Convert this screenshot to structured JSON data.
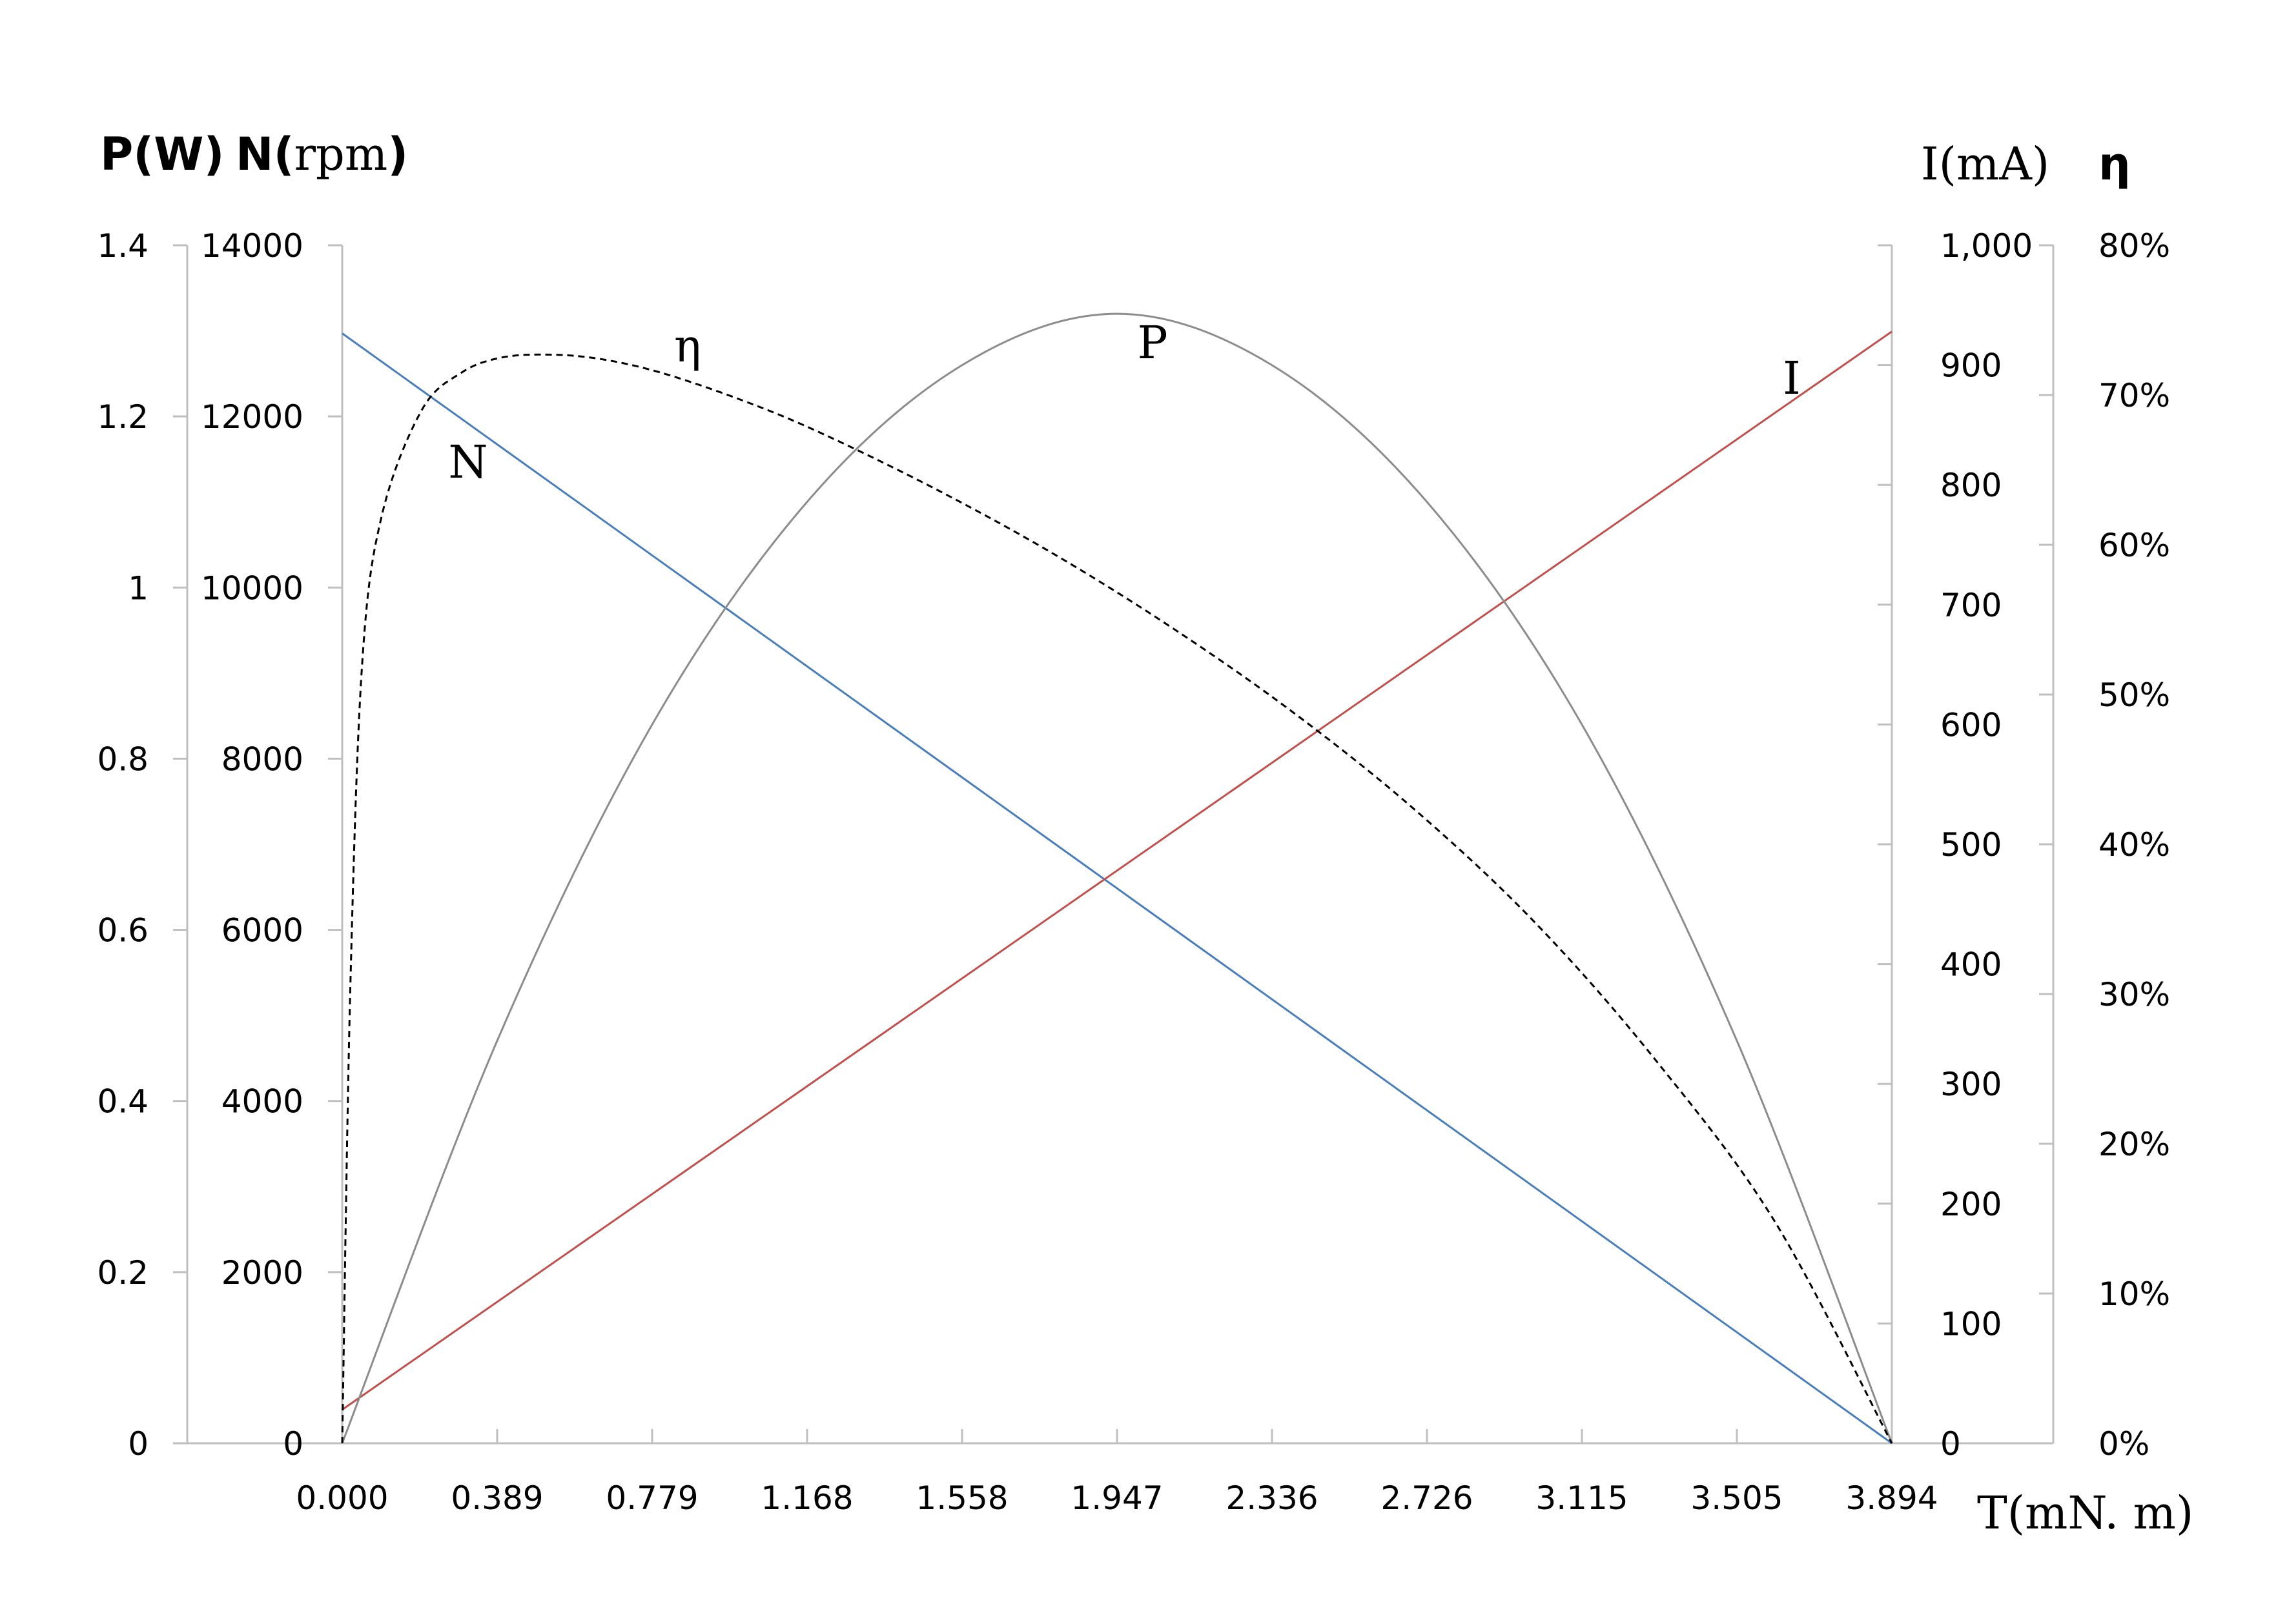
{
  "chart_data": {
    "type": "line",
    "title": "",
    "x_axis": {
      "label_main": "T",
      "label_unit": "(mN. m)",
      "min": 0,
      "max": 3.894,
      "ticks": [
        "0.000",
        "0.389",
        "0.779",
        "1.168",
        "1.558",
        "1.947",
        "2.336",
        "2.726",
        "3.115",
        "3.505",
        "3.894"
      ]
    },
    "y_axes": {
      "power": {
        "label": "P(W)",
        "min": 0,
        "max": 1.4,
        "ticks": [
          "0",
          "0.2",
          "0.4",
          "0.6",
          "0.8",
          "1",
          "1.2",
          "1.4"
        ]
      },
      "speed": {
        "label_bold": "N(",
        "label_unit": "rpm",
        "label_close": ")",
        "min": 0,
        "max": 14000,
        "ticks": [
          "0",
          "2000",
          "4000",
          "6000",
          "8000",
          "10000",
          "12000",
          "14000"
        ]
      },
      "current": {
        "label": "I(mA)",
        "min": 0,
        "max": 1000,
        "ticks": [
          "0",
          "100",
          "200",
          "300",
          "400",
          "500",
          "600",
          "700",
          "800",
          "900",
          "1,000"
        ]
      },
      "efficiency": {
        "label": "η",
        "min": 0,
        "max": 0.8,
        "ticks": [
          "0%",
          "10%",
          "20%",
          "30%",
          "40%",
          "50%",
          "60%",
          "70%",
          "80%"
        ]
      }
    },
    "series": [
      {
        "name": "N",
        "axis": "speed",
        "color": "#4a7ebb",
        "dash": "solid",
        "x": [
          0,
          3.894
        ],
        "y": [
          12970,
          0
        ]
      },
      {
        "name": "I",
        "axis": "current",
        "color": "#c0504d",
        "dash": "solid",
        "x": [
          0,
          3.894
        ],
        "y": [
          28,
          928
        ]
      },
      {
        "name": "P",
        "axis": "power",
        "color": "#8c8c8c",
        "dash": "solid",
        "x": [
          0,
          0.389,
          0.779,
          1.168,
          1.558,
          1.947,
          2.336,
          2.726,
          3.115,
          3.505,
          3.894
        ],
        "y": [
          0,
          0.47,
          0.84,
          1.1,
          1.26,
          1.32,
          1.26,
          1.1,
          0.84,
          0.47,
          0
        ]
      },
      {
        "name": "η",
        "axis": "efficiency",
        "color": "#000000",
        "dash": "dashed",
        "x": [
          0,
          0.02,
          0.05,
          0.1,
          0.2,
          0.3,
          0.4,
          0.52,
          0.65,
          0.8,
          1.0,
          1.2,
          1.5,
          1.8,
          2.1,
          2.4,
          2.7,
          3.0,
          3.3,
          3.6,
          3.894
        ],
        "y": [
          0,
          0.3,
          0.52,
          0.62,
          0.69,
          0.715,
          0.725,
          0.727,
          0.724,
          0.715,
          0.697,
          0.675,
          0.636,
          0.592,
          0.542,
          0.486,
          0.422,
          0.347,
          0.256,
          0.148,
          0
        ]
      }
    ],
    "curve_labels": [
      "N",
      "η",
      "P",
      "I"
    ]
  }
}
